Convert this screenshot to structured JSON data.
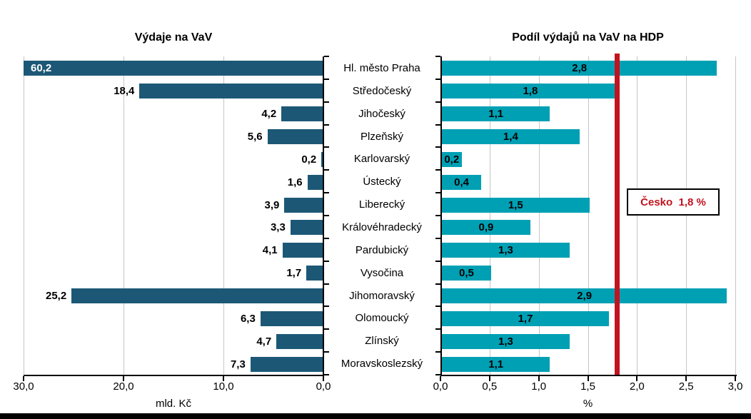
{
  "colors": {
    "left_bar": "#1C5876",
    "right_bar": "#00A0B4",
    "gridline": "#C6C6C6",
    "axis": "#000000",
    "reference_red": "#C11320",
    "value_label_inside": "#FFFFFF",
    "value_label": "#000000",
    "background": "#FFFFFF"
  },
  "categories": [
    "Hl. město Praha",
    "Středočeský",
    "Jihočeský",
    "Plzeňský",
    "Karlovarský",
    "Ústecký",
    "Liberecký",
    "Královéhradecký",
    "Pardubický",
    "Vysočina",
    "Jihomoravský",
    "Olomoucký",
    "Zlínský",
    "Moravskoslezský"
  ],
  "chart_data": [
    {
      "type": "bar",
      "orientation": "horizontal",
      "direction": "right-to-left",
      "title": "Výdaje na VaV",
      "xlabel": "mld. Kč",
      "categories": [
        "Hl. město Praha",
        "Středočeský",
        "Jihočeský",
        "Plzeňský",
        "Karlovarský",
        "Ústecký",
        "Liberecký",
        "Královéhradecký",
        "Pardubický",
        "Vysočina",
        "Jihomoravský",
        "Olomoucký",
        "Zlínský",
        "Moravskoslezský"
      ],
      "values": [
        60.2,
        18.4,
        4.2,
        5.6,
        0.2,
        1.6,
        3.9,
        3.3,
        4.1,
        1.7,
        25.2,
        6.3,
        4.7,
        7.3
      ],
      "value_labels": [
        "60,2",
        "18,4",
        "4,2",
        "5,6",
        "0,2",
        "1,6",
        "3,9",
        "3,3",
        "4,1",
        "1,7",
        "25,2",
        "6,3",
        "4,7",
        "7,3"
      ],
      "xlim": [
        0,
        30
      ],
      "x_reversed": true,
      "tick_values": [
        30,
        20,
        10,
        0
      ],
      "tick_labels": [
        "30,0",
        "20,0",
        "10,0",
        "0,0"
      ],
      "grid": true,
      "bar_color": "#1C5876",
      "note": "First bar (60,2) exceeds the 30 axis maximum and is clipped; its label is shown in white inside the bar."
    },
    {
      "type": "bar",
      "orientation": "horizontal",
      "direction": "left-to-right",
      "title": "Podíl výdajů na VaV na HDP",
      "xlabel": "%",
      "categories": [
        "Hl. město Praha",
        "Středočeský",
        "Jihočeský",
        "Plzeňský",
        "Karlovarský",
        "Ústecký",
        "Liberecký",
        "Královéhradecký",
        "Pardubický",
        "Vysočina",
        "Jihomoravský",
        "Olomoucký",
        "Zlínský",
        "Moravskoslezský"
      ],
      "values": [
        2.8,
        1.8,
        1.1,
        1.4,
        0.2,
        0.4,
        1.5,
        0.9,
        1.3,
        0.5,
        2.9,
        1.7,
        1.3,
        1.1
      ],
      "value_labels": [
        "2,8",
        "1,8",
        "1,1",
        "1,4",
        "0,2",
        "0,4",
        "1,5",
        "0,9",
        "1,3",
        "0,5",
        "2,9",
        "1,7",
        "1,3",
        "1,1"
      ],
      "xlim": [
        0,
        3
      ],
      "x_reversed": false,
      "tick_values": [
        0,
        0.5,
        1,
        1.5,
        2,
        2.5,
        3
      ],
      "tick_labels": [
        "0,0",
        "0,5",
        "1,0",
        "1,5",
        "2,0",
        "2,5",
        "3,0"
      ],
      "grid": true,
      "bar_color": "#00A0B4",
      "reference_line": {
        "value": 1.8,
        "label": "Česko  1,8 %",
        "color": "#C11320"
      }
    }
  ]
}
